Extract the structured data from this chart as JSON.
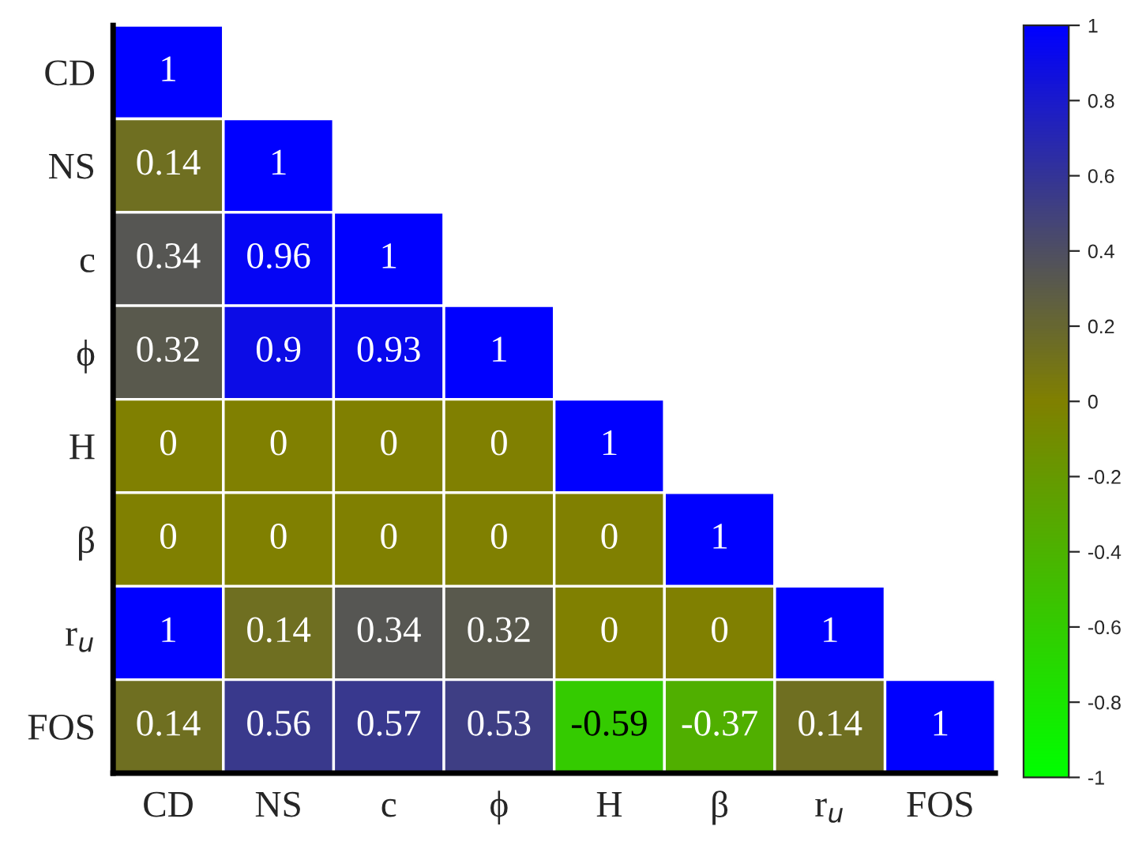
{
  "chart_data": {
    "type": "heatmap",
    "categories": [
      "CD",
      "NS",
      "c",
      "ϕ",
      "H",
      "β",
      "r$_{u}$",
      "FOS"
    ],
    "y_categories": [
      "CD",
      "NS",
      "c",
      "ϕ",
      "H",
      "β",
      "r$_{u}$",
      "FOS"
    ],
    "cells": [
      [
        1,
        null,
        null,
        null,
        null,
        null,
        null,
        null
      ],
      [
        0.14,
        1,
        null,
        null,
        null,
        null,
        null,
        null
      ],
      [
        0.34,
        0.96,
        1,
        null,
        null,
        null,
        null,
        null
      ],
      [
        0.32,
        0.9,
        0.93,
        1,
        null,
        null,
        null,
        null
      ],
      [
        0,
        0,
        0,
        0,
        1,
        null,
        null,
        null
      ],
      [
        0,
        0,
        0,
        0,
        0,
        1,
        null,
        null
      ],
      [
        1,
        0.14,
        0.34,
        0.32,
        0,
        0,
        1,
        null
      ],
      [
        0.14,
        0.56,
        0.57,
        0.53,
        -0.59,
        -0.37,
        0.14,
        1
      ]
    ],
    "data_labels": true,
    "clim": [
      -1,
      1
    ],
    "cticks": [
      1,
      0.8,
      0.6,
      0.4,
      0.2,
      0,
      -0.2,
      -0.4,
      -0.6,
      -0.8,
      -1
    ],
    "colors": [
      "#00ff00",
      "#808000",
      "#555555",
      "#0000ff"
    ]
  }
}
